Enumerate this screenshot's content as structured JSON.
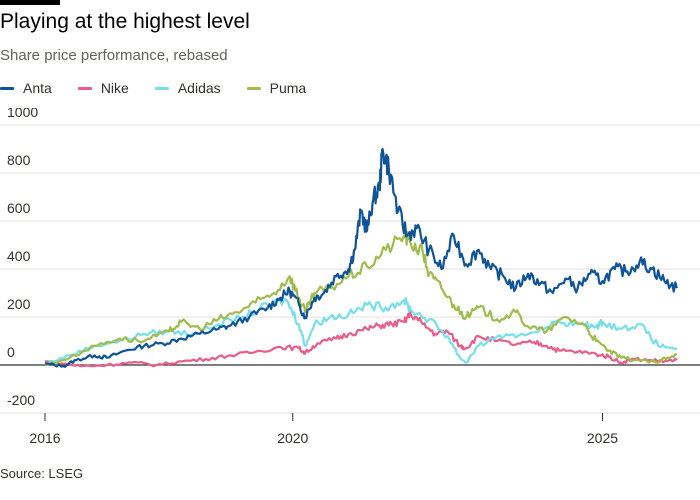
{
  "chart_data": {
    "type": "line",
    "title": "Playing at the highest level",
    "subtitle": "Share price performance, rebased",
    "source": "Source: LSEG",
    "ylim": [
      -200,
      1000
    ],
    "yticks": [
      "1000",
      "800",
      "600",
      "400",
      "200",
      "0",
      "-200"
    ],
    "ytick_values": [
      1000,
      800,
      600,
      400,
      200,
      0,
      -200
    ],
    "xlim": [
      2016,
      2026.3
    ],
    "xticks": [
      "2016",
      "2020",
      "2025"
    ],
    "xtick_values": [
      2016,
      2020,
      2025
    ],
    "grid": true,
    "legend_position": "top-left",
    "series": [
      {
        "name": "Anta",
        "color": "#0f5499",
        "points": [
          [
            2016.0,
            5
          ],
          [
            2016.3,
            -5
          ],
          [
            2016.5,
            20
          ],
          [
            2016.8,
            40
          ],
          [
            2017.0,
            30
          ],
          [
            2017.3,
            60
          ],
          [
            2017.6,
            80
          ],
          [
            2017.9,
            90
          ],
          [
            2018.2,
            110
          ],
          [
            2018.5,
            130
          ],
          [
            2018.8,
            150
          ],
          [
            2019.0,
            165
          ],
          [
            2019.3,
            200
          ],
          [
            2019.6,
            240
          ],
          [
            2019.8,
            280
          ],
          [
            2019.95,
            310
          ],
          [
            2020.1,
            250
          ],
          [
            2020.2,
            200
          ],
          [
            2020.35,
            280
          ],
          [
            2020.5,
            300
          ],
          [
            2020.7,
            370
          ],
          [
            2020.9,
            400
          ],
          [
            2021.0,
            480
          ],
          [
            2021.1,
            640
          ],
          [
            2021.2,
            560
          ],
          [
            2021.3,
            690
          ],
          [
            2021.4,
            740
          ],
          [
            2021.45,
            900
          ],
          [
            2021.55,
            820
          ],
          [
            2021.7,
            640
          ],
          [
            2021.85,
            540
          ],
          [
            2022.0,
            570
          ],
          [
            2022.2,
            480
          ],
          [
            2022.4,
            400
          ],
          [
            2022.6,
            540
          ],
          [
            2022.8,
            420
          ],
          [
            2023.0,
            480
          ],
          [
            2023.2,
            400
          ],
          [
            2023.4,
            370
          ],
          [
            2023.6,
            320
          ],
          [
            2023.8,
            380
          ],
          [
            2024.0,
            340
          ],
          [
            2024.2,
            300
          ],
          [
            2024.4,
            360
          ],
          [
            2024.6,
            320
          ],
          [
            2024.8,
            380
          ],
          [
            2025.0,
            350
          ],
          [
            2025.2,
            400
          ],
          [
            2025.4,
            390
          ],
          [
            2025.6,
            430
          ],
          [
            2025.8,
            400
          ],
          [
            2026.0,
            350
          ],
          [
            2026.2,
            320
          ]
        ]
      },
      {
        "name": "Nike",
        "color": "#e95d8c",
        "points": [
          [
            2016.0,
            15
          ],
          [
            2016.3,
            5
          ],
          [
            2016.6,
            -5
          ],
          [
            2017.0,
            0
          ],
          [
            2017.4,
            10
          ],
          [
            2017.8,
            0
          ],
          [
            2018.2,
            15
          ],
          [
            2018.6,
            25
          ],
          [
            2019.0,
            40
          ],
          [
            2019.4,
            55
          ],
          [
            2019.8,
            75
          ],
          [
            2020.1,
            70
          ],
          [
            2020.2,
            50
          ],
          [
            2020.4,
            90
          ],
          [
            2020.7,
            110
          ],
          [
            2020.9,
            130
          ],
          [
            2021.2,
            150
          ],
          [
            2021.4,
            165
          ],
          [
            2021.6,
            170
          ],
          [
            2021.8,
            180
          ],
          [
            2021.9,
            215
          ],
          [
            2022.1,
            170
          ],
          [
            2022.3,
            130
          ],
          [
            2022.5,
            140
          ],
          [
            2022.7,
            80
          ],
          [
            2022.8,
            70
          ],
          [
            2023.0,
            120
          ],
          [
            2023.3,
            100
          ],
          [
            2023.6,
            85
          ],
          [
            2023.9,
            95
          ],
          [
            2024.1,
            80
          ],
          [
            2024.3,
            60
          ],
          [
            2024.6,
            55
          ],
          [
            2024.9,
            45
          ],
          [
            2025.1,
            35
          ],
          [
            2025.3,
            10
          ],
          [
            2025.5,
            25
          ],
          [
            2025.8,
            20
          ],
          [
            2026.0,
            15
          ],
          [
            2026.2,
            20
          ]
        ]
      },
      {
        "name": "Adidas",
        "color": "#75e0ea",
        "points": [
          [
            2016.0,
            5
          ],
          [
            2016.4,
            40
          ],
          [
            2016.8,
            80
          ],
          [
            2017.2,
            100
          ],
          [
            2017.6,
            130
          ],
          [
            2018.0,
            140
          ],
          [
            2018.4,
            130
          ],
          [
            2018.8,
            170
          ],
          [
            2019.2,
            200
          ],
          [
            2019.6,
            250
          ],
          [
            2019.9,
            270
          ],
          [
            2020.1,
            170
          ],
          [
            2020.2,
            80
          ],
          [
            2020.35,
            170
          ],
          [
            2020.6,
            200
          ],
          [
            2020.9,
            210
          ],
          [
            2021.2,
            250
          ],
          [
            2021.5,
            240
          ],
          [
            2021.8,
            270
          ],
          [
            2021.9,
            230
          ],
          [
            2022.2,
            190
          ],
          [
            2022.5,
            120
          ],
          [
            2022.7,
            30
          ],
          [
            2022.8,
            10
          ],
          [
            2023.0,
            80
          ],
          [
            2023.3,
            120
          ],
          [
            2023.6,
            115
          ],
          [
            2024.0,
            150
          ],
          [
            2024.3,
            180
          ],
          [
            2024.6,
            170
          ],
          [
            2024.9,
            160
          ],
          [
            2025.0,
            180
          ],
          [
            2025.3,
            150
          ],
          [
            2025.6,
            170
          ],
          [
            2025.9,
            80
          ],
          [
            2026.2,
            70
          ]
        ]
      },
      {
        "name": "Puma",
        "color": "#a0bc4c",
        "points": [
          [
            2016.0,
            0
          ],
          [
            2016.4,
            30
          ],
          [
            2016.8,
            80
          ],
          [
            2017.2,
            110
          ],
          [
            2017.6,
            100
          ],
          [
            2018.0,
            140
          ],
          [
            2018.2,
            180
          ],
          [
            2018.5,
            150
          ],
          [
            2018.8,
            190
          ],
          [
            2019.1,
            220
          ],
          [
            2019.4,
            260
          ],
          [
            2019.7,
            300
          ],
          [
            2019.95,
            370
          ],
          [
            2020.1,
            280
          ],
          [
            2020.2,
            220
          ],
          [
            2020.35,
            300
          ],
          [
            2020.6,
            320
          ],
          [
            2020.9,
            370
          ],
          [
            2021.2,
            410
          ],
          [
            2021.5,
            480
          ],
          [
            2021.8,
            540
          ],
          [
            2021.9,
            510
          ],
          [
            2022.1,
            470
          ],
          [
            2022.2,
            380
          ],
          [
            2022.4,
            320
          ],
          [
            2022.6,
            250
          ],
          [
            2022.8,
            200
          ],
          [
            2023.0,
            240
          ],
          [
            2023.3,
            190
          ],
          [
            2023.6,
            220
          ],
          [
            2023.8,
            160
          ],
          [
            2024.1,
            140
          ],
          [
            2024.4,
            200
          ],
          [
            2024.7,
            170
          ],
          [
            2024.9,
            100
          ],
          [
            2025.1,
            60
          ],
          [
            2025.3,
            30
          ],
          [
            2025.6,
            20
          ],
          [
            2025.9,
            10
          ],
          [
            2026.0,
            30
          ],
          [
            2026.2,
            45
          ]
        ]
      }
    ]
  }
}
